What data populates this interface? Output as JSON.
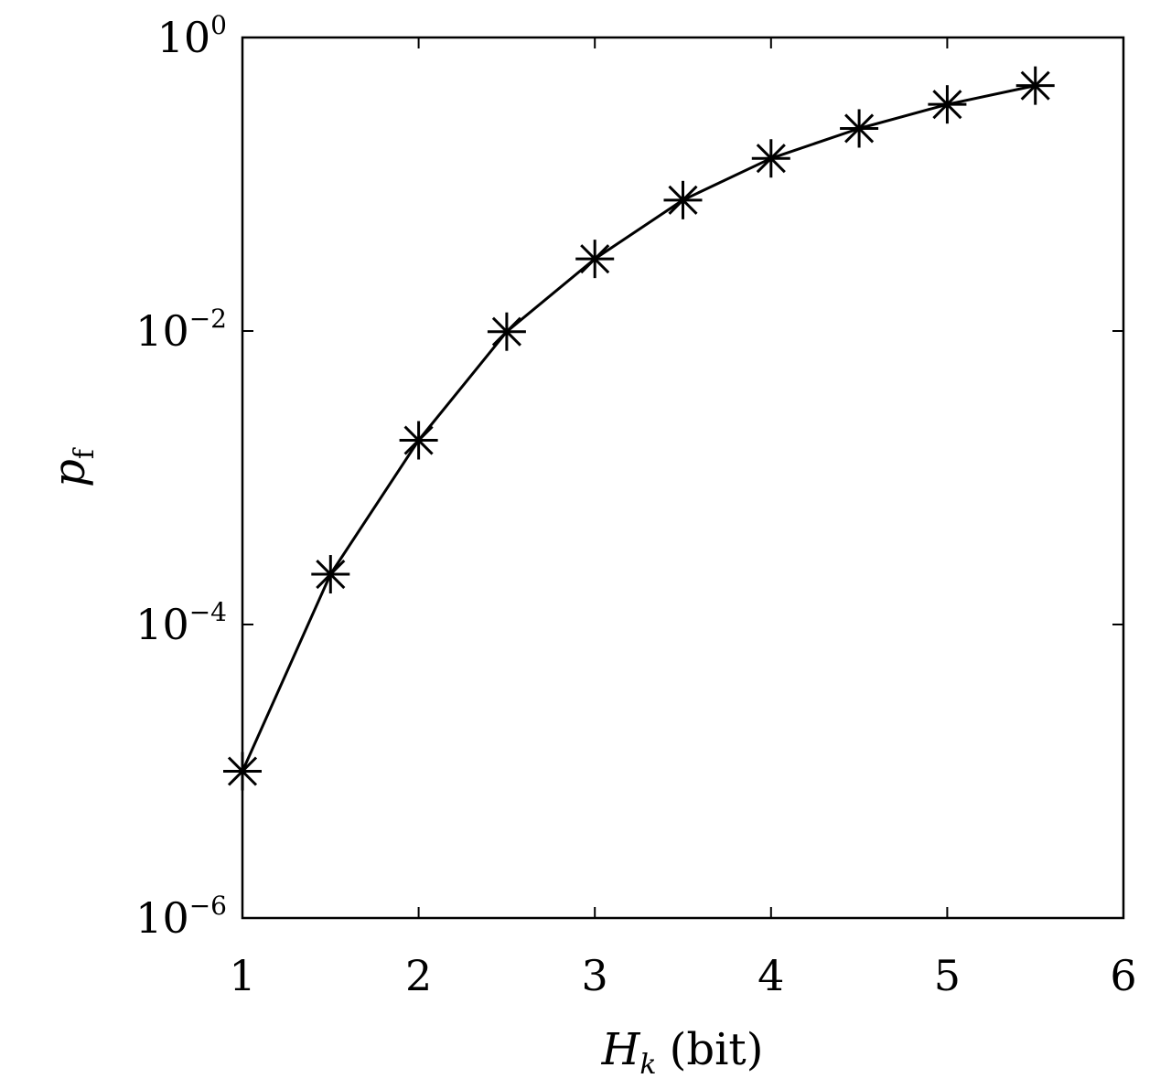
{
  "chart_data": {
    "type": "line",
    "xlabel": {
      "symbol": "H",
      "subscript": "k",
      "unit": "(bit)"
    },
    "ylabel": {
      "symbol": "p",
      "subscript": "f"
    },
    "xlim": [
      1,
      6
    ],
    "ylim": [
      1e-06,
      1
    ],
    "yscale": "log",
    "grid": false,
    "legend": "none",
    "x_ticks": [
      "1",
      "2",
      "3",
      "4",
      "5",
      "6"
    ],
    "y_ticks": [
      {
        "base": "10",
        "exp": "0"
      },
      {
        "base": "10",
        "exp": "−2"
      },
      {
        "base": "10",
        "exp": "−4"
      },
      {
        "base": "10",
        "exp": "−6"
      }
    ],
    "marker": "asterisk",
    "color": "#000000",
    "series": [
      {
        "x": [
          1.0,
          1.5,
          2.0,
          2.5,
          3.0,
          3.5,
          4.0,
          4.5,
          5.0,
          5.5
        ],
        "y": [
          1e-05,
          0.00022,
          0.0018,
          0.0099,
          0.031,
          0.078,
          0.15,
          0.24,
          0.35,
          0.47
        ]
      }
    ]
  }
}
